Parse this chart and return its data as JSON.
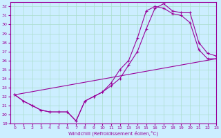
{
  "xlabel": "Windchill (Refroidissement éolien,°C)",
  "ylabel": "",
  "bg_color": "#cceeff",
  "line_color": "#990099",
  "grid_color": "#aaddcc",
  "xlim": [
    -0.5,
    23
  ],
  "ylim": [
    19,
    32.5
  ],
  "yticks": [
    19,
    20,
    21,
    22,
    23,
    24,
    25,
    26,
    27,
    28,
    29,
    30,
    31,
    32
  ],
  "xticks": [
    0,
    1,
    2,
    3,
    4,
    5,
    6,
    7,
    8,
    9,
    10,
    11,
    12,
    13,
    14,
    15,
    16,
    17,
    18,
    19,
    20,
    21,
    22,
    23
  ],
  "line1_x": [
    0,
    1,
    2,
    3,
    4,
    5,
    6,
    7,
    8,
    9,
    10,
    11,
    12,
    13,
    14,
    15,
    16,
    17,
    18,
    19,
    20,
    21,
    22,
    23
  ],
  "line1_y": [
    22.2,
    21.5,
    21.0,
    20.5,
    20.3,
    20.3,
    20.3,
    19.3,
    21.5,
    22.0,
    22.5,
    23.2,
    24.0,
    25.5,
    27.0,
    29.5,
    31.8,
    32.3,
    31.5,
    31.3,
    31.3,
    28.0,
    26.8,
    26.5
  ],
  "line2_x": [
    0,
    1,
    2,
    3,
    4,
    5,
    6,
    7,
    8,
    9,
    10,
    11,
    12,
    13,
    14,
    15,
    16,
    17,
    18,
    19,
    20,
    21,
    22,
    23
  ],
  "line2_y": [
    22.2,
    21.5,
    21.0,
    20.5,
    20.3,
    20.3,
    20.3,
    19.3,
    21.5,
    22.0,
    22.5,
    23.5,
    25.0,
    26.0,
    28.5,
    31.5,
    32.0,
    31.8,
    31.2,
    31.0,
    30.2,
    27.2,
    26.2,
    26.2
  ],
  "line3_x": [
    0,
    23
  ],
  "line3_y": [
    22.2,
    26.2
  ]
}
